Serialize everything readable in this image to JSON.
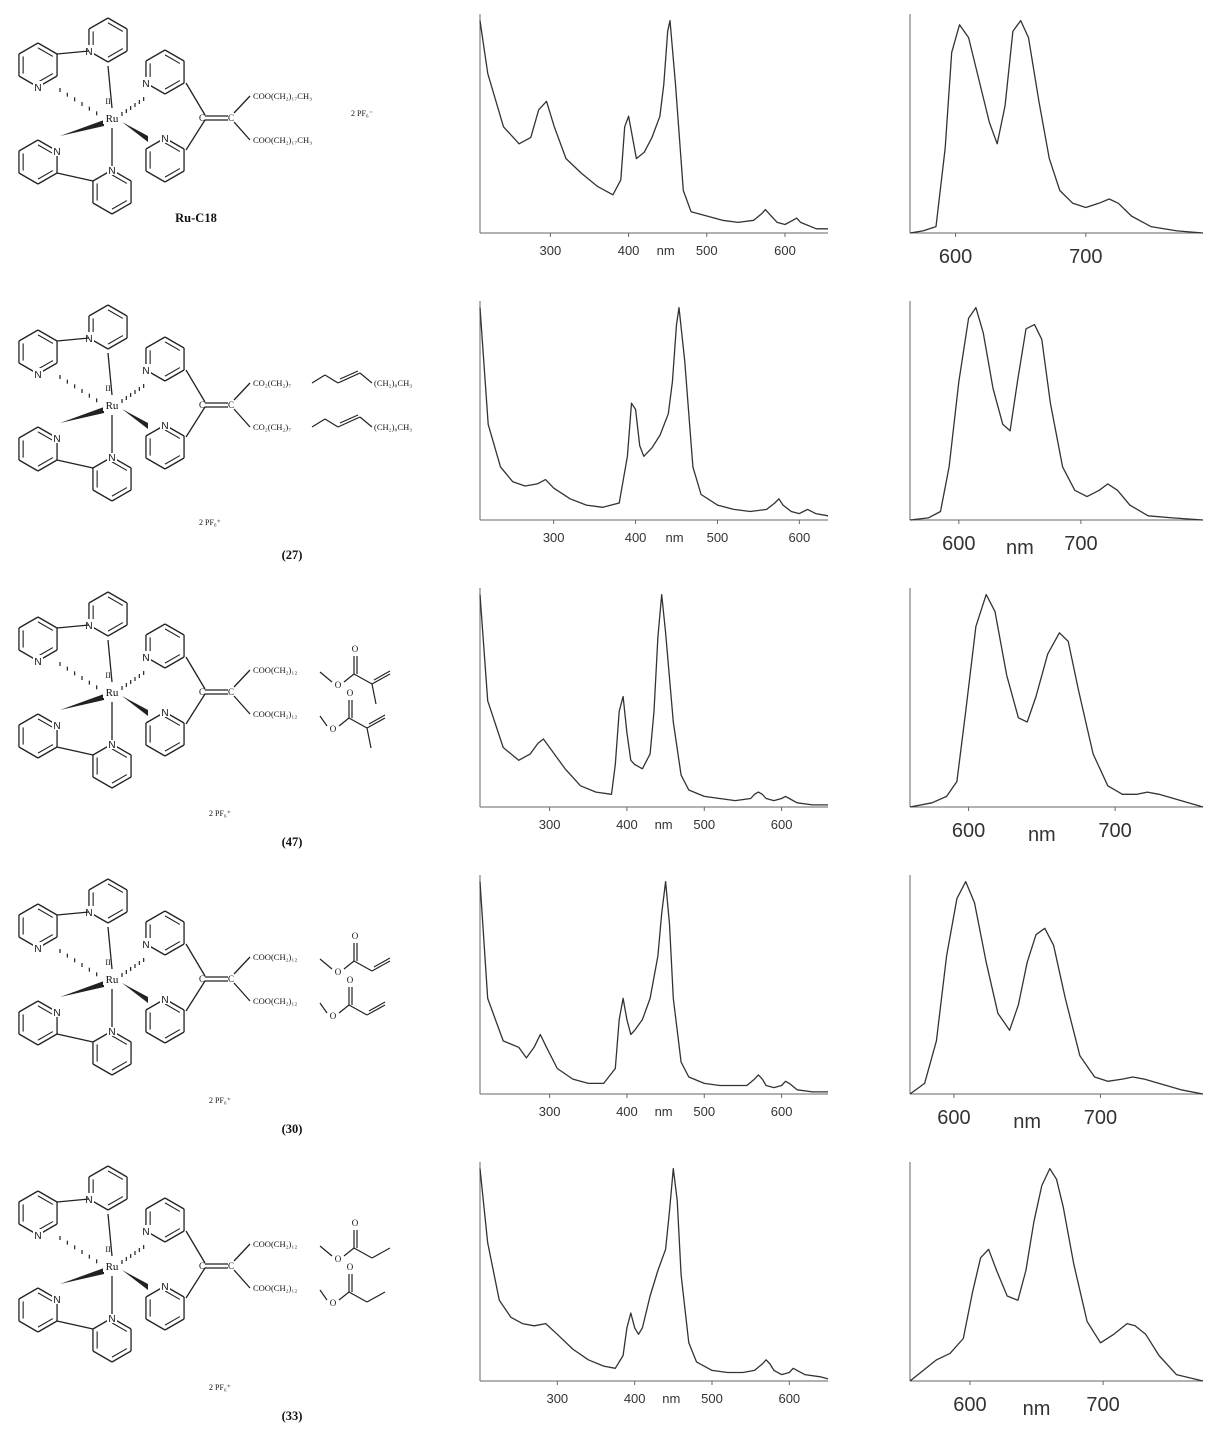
{
  "panels": [
    {
      "id": "ru-c18",
      "label": "Ru-C18",
      "ester_top": "COO(CH₂)₁₇CH₃",
      "ester_bottom": "COO(CH₂)₁₇CH₃",
      "tail_type": "alkyl",
      "counterion": "2 PF₆⁻",
      "absorption": {
        "type": "line",
        "xlim": [
          210,
          655
        ],
        "x_ticks": [
          300,
          400,
          500,
          600
        ],
        "unit_label": "nm",
        "x": [
          210,
          220,
          240,
          260,
          275,
          285,
          295,
          305,
          320,
          340,
          360,
          380,
          390,
          395,
          400,
          405,
          410,
          420,
          430,
          440,
          445,
          450,
          453,
          460,
          470,
          480,
          500,
          520,
          540,
          560,
          570,
          575,
          580,
          590,
          600,
          610,
          615,
          620,
          640,
          655
        ],
        "y": [
          1.0,
          0.75,
          0.5,
          0.42,
          0.45,
          0.58,
          0.62,
          0.5,
          0.35,
          0.28,
          0.22,
          0.18,
          0.25,
          0.5,
          0.55,
          0.45,
          0.35,
          0.38,
          0.45,
          0.55,
          0.7,
          0.95,
          1.0,
          0.7,
          0.2,
          0.1,
          0.08,
          0.06,
          0.05,
          0.06,
          0.09,
          0.11,
          0.09,
          0.05,
          0.04,
          0.06,
          0.07,
          0.05,
          0.02,
          0.02
        ]
      },
      "emission": {
        "type": "line",
        "xlim": [
          565,
          790
        ],
        "x_ticks": [
          600,
          700
        ],
        "unit_label": "",
        "x": [
          565,
          575,
          585,
          592,
          597,
          603,
          610,
          618,
          626,
          632,
          638,
          644,
          650,
          656,
          664,
          672,
          680,
          690,
          700,
          710,
          718,
          725,
          735,
          750,
          770,
          790
        ],
        "y": [
          0.0,
          0.01,
          0.03,
          0.4,
          0.85,
          0.98,
          0.92,
          0.72,
          0.52,
          0.42,
          0.6,
          0.95,
          1.0,
          0.92,
          0.62,
          0.35,
          0.2,
          0.14,
          0.12,
          0.14,
          0.16,
          0.14,
          0.08,
          0.03,
          0.01,
          0.0
        ]
      }
    },
    {
      "id": "27",
      "label": "(27)",
      "ester_top": "CO₂(CH₂)₇",
      "ester_bottom": "CO₂(CH₂)₇",
      "tail_top": "(CH₂)₈CH₃",
      "tail_bottom": "(CH₂)₈CH₃",
      "tail_type": "oleyl",
      "counterion": "2 PF₆⁺",
      "absorption": {
        "type": "line",
        "xlim": [
          210,
          635
        ],
        "x_ticks": [
          300,
          400,
          500,
          600
        ],
        "unit_label": "nm",
        "x": [
          210,
          220,
          235,
          250,
          265,
          280,
          290,
          300,
          320,
          340,
          360,
          380,
          390,
          395,
          400,
          405,
          410,
          420,
          430,
          440,
          445,
          450,
          453,
          460,
          470,
          480,
          500,
          520,
          540,
          560,
          570,
          575,
          580,
          590,
          600,
          605,
          610,
          620,
          635
        ],
        "y": [
          1.0,
          0.45,
          0.25,
          0.18,
          0.16,
          0.17,
          0.19,
          0.15,
          0.1,
          0.07,
          0.06,
          0.08,
          0.3,
          0.55,
          0.52,
          0.35,
          0.3,
          0.34,
          0.4,
          0.5,
          0.65,
          0.92,
          1.0,
          0.75,
          0.25,
          0.12,
          0.07,
          0.05,
          0.04,
          0.05,
          0.08,
          0.1,
          0.07,
          0.04,
          0.03,
          0.04,
          0.05,
          0.03,
          0.02
        ]
      },
      "emission": {
        "type": "line",
        "xlim": [
          560,
          800
        ],
        "x_ticks": [
          600,
          700
        ],
        "unit_label": "nm",
        "x": [
          560,
          575,
          585,
          592,
          600,
          608,
          614,
          620,
          628,
          636,
          642,
          648,
          655,
          662,
          668,
          675,
          685,
          695,
          705,
          715,
          722,
          730,
          740,
          755,
          775,
          800
        ],
        "y": [
          0.0,
          0.01,
          0.04,
          0.25,
          0.65,
          0.95,
          1.0,
          0.88,
          0.62,
          0.45,
          0.42,
          0.65,
          0.9,
          0.92,
          0.85,
          0.55,
          0.25,
          0.14,
          0.11,
          0.14,
          0.17,
          0.14,
          0.07,
          0.02,
          0.01,
          0.0
        ]
      }
    },
    {
      "id": "47",
      "label": "(47)",
      "ester_top": "COO(CH₂)₁₂",
      "ester_bottom": "COO(CH₂)₁₂",
      "tail_type": "methacrylate",
      "counterion": "2 PF₆⁺",
      "absorption": {
        "type": "line",
        "xlim": [
          210,
          660
        ],
        "x_ticks": [
          300,
          400,
          500,
          600
        ],
        "unit_label": "nm",
        "x": [
          210,
          220,
          240,
          260,
          275,
          285,
          292,
          300,
          320,
          340,
          360,
          380,
          385,
          390,
          395,
          400,
          405,
          410,
          420,
          430,
          435,
          440,
          445,
          450,
          460,
          470,
          480,
          500,
          520,
          540,
          560,
          565,
          570,
          575,
          580,
          590,
          600,
          605,
          610,
          620,
          640,
          660
        ],
        "y": [
          1.0,
          0.5,
          0.28,
          0.22,
          0.25,
          0.3,
          0.32,
          0.28,
          0.18,
          0.1,
          0.07,
          0.06,
          0.2,
          0.45,
          0.52,
          0.35,
          0.22,
          0.2,
          0.18,
          0.25,
          0.45,
          0.8,
          1.0,
          0.82,
          0.4,
          0.15,
          0.08,
          0.05,
          0.04,
          0.03,
          0.04,
          0.06,
          0.07,
          0.06,
          0.04,
          0.03,
          0.04,
          0.05,
          0.04,
          0.02,
          0.01,
          0.01
        ]
      },
      "emission": {
        "type": "line",
        "xlim": [
          560,
          760
        ],
        "x_ticks": [
          600,
          700
        ],
        "unit_label": "nm",
        "x": [
          560,
          575,
          585,
          592,
          598,
          605,
          612,
          618,
          626,
          634,
          640,
          646,
          654,
          662,
          668,
          675,
          685,
          695,
          705,
          715,
          722,
          730,
          740,
          750,
          760
        ],
        "y": [
          0.0,
          0.02,
          0.05,
          0.12,
          0.45,
          0.85,
          1.0,
          0.92,
          0.62,
          0.42,
          0.4,
          0.52,
          0.72,
          0.82,
          0.78,
          0.55,
          0.25,
          0.1,
          0.06,
          0.06,
          0.07,
          0.06,
          0.04,
          0.02,
          0.0
        ]
      }
    },
    {
      "id": "30",
      "label": "(30)",
      "ester_top": "COO(CH₂)₁₂",
      "ester_bottom": "COO(CH₂)₁₂",
      "tail_type": "acrylate",
      "counterion": "2 PF₆⁺",
      "absorption": {
        "type": "line",
        "xlim": [
          210,
          660
        ],
        "x_ticks": [
          300,
          400,
          500,
          600
        ],
        "unit_label": "nm",
        "x": [
          210,
          220,
          240,
          260,
          270,
          280,
          288,
          296,
          310,
          330,
          350,
          370,
          385,
          390,
          395,
          400,
          405,
          410,
          420,
          430,
          440,
          445,
          450,
          455,
          460,
          470,
          480,
          500,
          520,
          540,
          555,
          565,
          570,
          575,
          580,
          590,
          600,
          605,
          610,
          620,
          640,
          660
        ],
        "y": [
          1.0,
          0.45,
          0.25,
          0.22,
          0.17,
          0.22,
          0.28,
          0.22,
          0.12,
          0.07,
          0.05,
          0.05,
          0.12,
          0.35,
          0.45,
          0.35,
          0.28,
          0.3,
          0.35,
          0.45,
          0.65,
          0.85,
          1.0,
          0.8,
          0.45,
          0.15,
          0.08,
          0.05,
          0.04,
          0.04,
          0.04,
          0.07,
          0.09,
          0.07,
          0.04,
          0.03,
          0.04,
          0.06,
          0.05,
          0.02,
          0.01,
          0.01
        ]
      },
      "emission": {
        "type": "line",
        "xlim": [
          570,
          770
        ],
        "x_ticks": [
          600,
          700
        ],
        "unit_label": "nm",
        "x": [
          570,
          580,
          588,
          595,
          602,
          608,
          614,
          622,
          630,
          638,
          644,
          650,
          656,
          662,
          668,
          676,
          686,
          696,
          705,
          715,
          722,
          730,
          740,
          755,
          770
        ],
        "y": [
          0.0,
          0.05,
          0.25,
          0.65,
          0.92,
          1.0,
          0.9,
          0.62,
          0.38,
          0.3,
          0.42,
          0.62,
          0.75,
          0.78,
          0.7,
          0.45,
          0.18,
          0.08,
          0.06,
          0.07,
          0.08,
          0.07,
          0.05,
          0.02,
          0.0
        ]
      }
    },
    {
      "id": "33",
      "label": "(33)",
      "ester_top": "COO(CH₂)₁₂",
      "ester_bottom": "COO(CH₂)₁₂",
      "tail_type": "propanoate",
      "counterion": "2 PF₆⁺",
      "absorption": {
        "type": "line",
        "xlim": [
          200,
          650
        ],
        "x_ticks": [
          300,
          400,
          500,
          600
        ],
        "unit_label": "nm",
        "x": [
          200,
          210,
          225,
          240,
          255,
          270,
          285,
          300,
          320,
          340,
          360,
          375,
          385,
          390,
          395,
          400,
          405,
          410,
          420,
          430,
          440,
          445,
          450,
          455,
          460,
          470,
          480,
          500,
          520,
          540,
          555,
          565,
          570,
          575,
          580,
          590,
          600,
          605,
          610,
          620,
          640,
          650
        ],
        "y": [
          1.0,
          0.65,
          0.38,
          0.3,
          0.27,
          0.26,
          0.27,
          0.22,
          0.15,
          0.1,
          0.07,
          0.06,
          0.12,
          0.25,
          0.32,
          0.25,
          0.22,
          0.25,
          0.4,
          0.52,
          0.62,
          0.8,
          1.0,
          0.85,
          0.5,
          0.18,
          0.09,
          0.05,
          0.04,
          0.04,
          0.05,
          0.08,
          0.1,
          0.08,
          0.05,
          0.03,
          0.04,
          0.06,
          0.05,
          0.03,
          0.02,
          0.01
        ]
      },
      "emission": {
        "type": "line",
        "xlim": [
          555,
          775
        ],
        "x_ticks": [
          600,
          700
        ],
        "unit_label": "nm",
        "x": [
          555,
          565,
          575,
          585,
          595,
          602,
          608,
          614,
          620,
          628,
          636,
          642,
          648,
          654,
          660,
          665,
          670,
          678,
          688,
          698,
          708,
          718,
          724,
          732,
          742,
          755,
          775
        ],
        "y": [
          0.0,
          0.05,
          0.1,
          0.13,
          0.2,
          0.42,
          0.58,
          0.62,
          0.52,
          0.4,
          0.38,
          0.52,
          0.75,
          0.92,
          1.0,
          0.95,
          0.82,
          0.55,
          0.28,
          0.18,
          0.22,
          0.27,
          0.26,
          0.22,
          0.12,
          0.03,
          0.0
        ]
      }
    }
  ],
  "structure_atoms": {
    "n": "N",
    "ru": "Ru",
    "ox": "II",
    "c": "C",
    "o": "O"
  }
}
